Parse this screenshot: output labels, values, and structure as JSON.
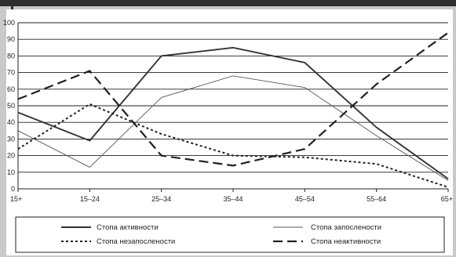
{
  "chart_data": {
    "type": "line",
    "title": "",
    "xlabel": "",
    "ylabel": "",
    "categories": [
      "15+",
      "15–24",
      "25–34",
      "35–44",
      "45–54",
      "55–64",
      "65+"
    ],
    "ylim": [
      0,
      100
    ],
    "yticks": [
      0,
      10,
      20,
      30,
      40,
      50,
      60,
      70,
      80,
      90,
      100
    ],
    "grid": "horizontal",
    "legend_position": "bottom",
    "series": [
      {
        "name": "Стопа активности",
        "style": "solid-thick",
        "color": "#333333",
        "values": [
          46,
          29,
          80,
          85,
          76,
          37,
          6
        ]
      },
      {
        "name": "Стопа запослености",
        "style": "solid-thin",
        "color": "#555555",
        "values": [
          35,
          13,
          55,
          68,
          61,
          32,
          5
        ]
      },
      {
        "name": "Стопа незапослености",
        "style": "dotted",
        "color": "#222222",
        "values": [
          24,
          51,
          33,
          20,
          19,
          15,
          1
        ]
      },
      {
        "name": "Стопа неактивности",
        "style": "dashed",
        "color": "#222222",
        "values": [
          54,
          71,
          20,
          14,
          24,
          63,
          94
        ]
      }
    ]
  }
}
